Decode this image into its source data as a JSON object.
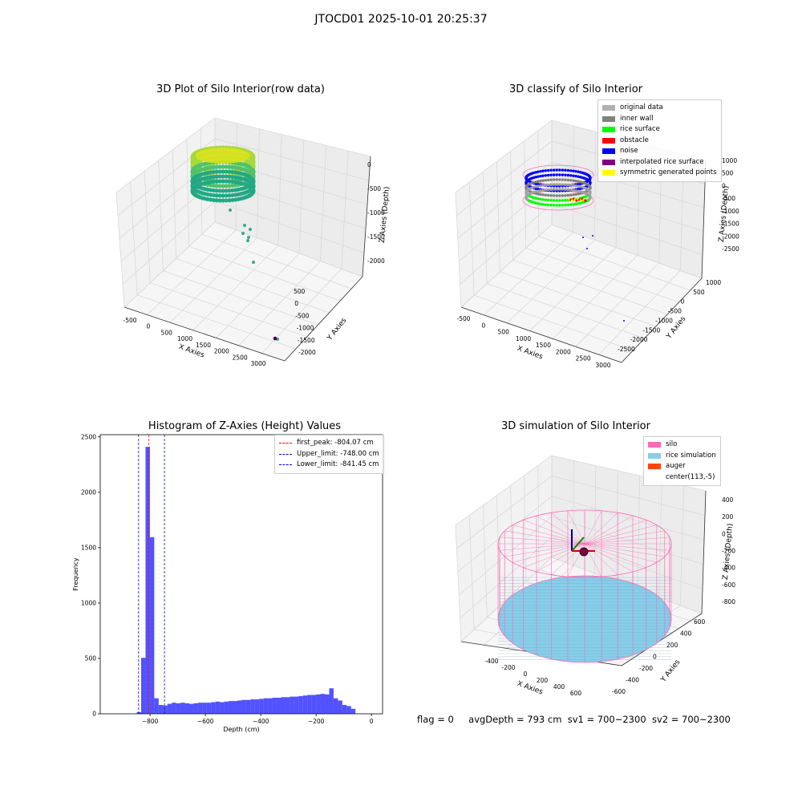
{
  "figure": {
    "suptitle": "JTOCD01 2025-10-01 20:25:37",
    "status_line": {
      "flag": "flag = 0",
      "avg": "avgDepth = 793 cm",
      "sv1": "sv1 = 700~2300",
      "sv2": "sv2 = 700~2300"
    }
  },
  "panels": {
    "p1": {
      "title": "3D Plot of Silo Interior(row data)",
      "xlabel": "X Axies",
      "ylabel": "Y Axies",
      "zlabel": "Z Axies (Depth)",
      "xticks": [
        "-500",
        "0",
        "500",
        "1000",
        "1500",
        "2000",
        "2500",
        "3000"
      ],
      "yticks": [
        "500",
        "0",
        "-500",
        "-1000",
        "-1500",
        "-2000"
      ],
      "zticks": [
        "0",
        "-500",
        "-1000",
        "-1500",
        "-2000"
      ]
    },
    "p2": {
      "title": "3D classify of Silo Interior",
      "xlabel": "X Axies",
      "ylabel": "Y Axies",
      "zlabel": "Z Axies (Depth)",
      "xticks": [
        "-500",
        "0",
        "500",
        "1000",
        "1500",
        "2000",
        "2500",
        "3000"
      ],
      "yticks": [
        "1000",
        "500",
        "0",
        "-500",
        "-1000",
        "-1500",
        "-2000",
        "-2500"
      ],
      "zticks": [
        "1000",
        "500",
        "0",
        "-500",
        "-1000",
        "-1500",
        "-2000",
        "-2500"
      ],
      "legend": [
        {
          "label": "original data",
          "color": "#b0b0b0"
        },
        {
          "label": "inner wall",
          "color": "#808080"
        },
        {
          "label": "rice surface",
          "color": "#00ff00"
        },
        {
          "label": "obstacle",
          "color": "#ff0000"
        },
        {
          "label": "noise",
          "color": "#0000ff"
        },
        {
          "label": "interpolated rice surface",
          "color": "#800080"
        },
        {
          "label": "symmetric generated points",
          "color": "#ffff00"
        }
      ]
    },
    "p3": {
      "title": "Histogram of Z-Axies (Height) Values",
      "xlabel": "Depth (cm)",
      "ylabel": "Frequency",
      "legend": [
        {
          "label": "first_peak: -804.07 cm",
          "color": "#ff0000"
        },
        {
          "label": "Upper_limit: -748.00 cm",
          "color": "#0000cc"
        },
        {
          "label": "Lower_limit: -841.45 cm",
          "color": "#0000cc"
        }
      ]
    },
    "p4": {
      "title": "3D simulation of Silo Interior",
      "xlabel": "X Axies",
      "ylabel": "Y Axies",
      "zlabel": "Z Axies (Depth)",
      "xticks": [
        "-400",
        "-200",
        "0",
        "200",
        "400",
        "600"
      ],
      "yticks": [
        "600",
        "400",
        "200",
        "0",
        "-200",
        "-400",
        "-600"
      ],
      "zticks": [
        "400",
        "200",
        "0",
        "-200",
        "-400",
        "-600",
        "-800"
      ],
      "legend": [
        {
          "label": "silo",
          "color": "#ff69b4"
        },
        {
          "label": "rice simulation",
          "color": "#87ceeb"
        },
        {
          "label": "auger",
          "color": "#ff4500"
        },
        {
          "label": "center(113,-5)",
          "color": "#ffffff"
        }
      ]
    }
  },
  "chart_data": [
    {
      "type": "scatter",
      "title": "3D Plot of Silo Interior(row data)",
      "xlabel": "X Axies",
      "ylabel": "Y Axies",
      "zlabel": "Z Axies (Depth)",
      "xlim": [
        -600,
        3200
      ],
      "ylim": [
        -2200,
        600
      ],
      "zlim": [
        -2100,
        50
      ],
      "note": "ring of points around depth 0 to -800 plus sparse outliers"
    },
    {
      "type": "scatter",
      "title": "3D classify of Silo Interior",
      "xlabel": "X Axies",
      "ylabel": "Y Axies",
      "zlabel": "Z Axies (Depth)",
      "xlim": [
        -600,
        3200
      ],
      "ylim": [
        -2600,
        1100
      ],
      "zlim": [
        -2700,
        1100
      ]
    },
    {
      "type": "bar",
      "title": "Histogram of Z-Axies (Height) Values",
      "xlabel": "Depth (cm)",
      "ylabel": "Frequency",
      "xlim": [
        -980,
        40
      ],
      "ylim": [
        0,
        2520
      ],
      "xticks": [
        -800,
        -600,
        -400,
        -200,
        0
      ],
      "yticks": [
        0,
        500,
        1000,
        1500,
        2000,
        2500
      ],
      "bin_width": 15.8,
      "bin_start": -848,
      "values": [
        15,
        505,
        2410,
        1595,
        140,
        80,
        75,
        90,
        100,
        95,
        100,
        95,
        90,
        95,
        100,
        100,
        100,
        105,
        110,
        105,
        110,
        115,
        115,
        120,
        125,
        125,
        130,
        130,
        135,
        140,
        140,
        145,
        145,
        150,
        150,
        155,
        155,
        160,
        165,
        170,
        170,
        175,
        180,
        175,
        230,
        140,
        120,
        80,
        70,
        45
      ],
      "vlines": [
        {
          "x": -804.07,
          "color": "#ff0000",
          "label": "first_peak: -804.07 cm"
        },
        {
          "x": -748.0,
          "color": "#0000cc",
          "label": "Upper_limit: -748.00 cm"
        },
        {
          "x": -841.45,
          "color": "#0000cc",
          "label": "Lower_limit: -841.45 cm"
        }
      ],
      "bar_color": "#0000ff"
    },
    {
      "type": "surface",
      "title": "3D simulation of Silo Interior",
      "xlabel": "X Axies",
      "ylabel": "Y Axies",
      "zlabel": "Z Axies (Depth)",
      "xlim": [
        -500,
        750
      ],
      "ylim": [
        -650,
        650
      ],
      "zlim": [
        -900,
        450
      ],
      "center": [
        113,
        -5
      ]
    }
  ]
}
